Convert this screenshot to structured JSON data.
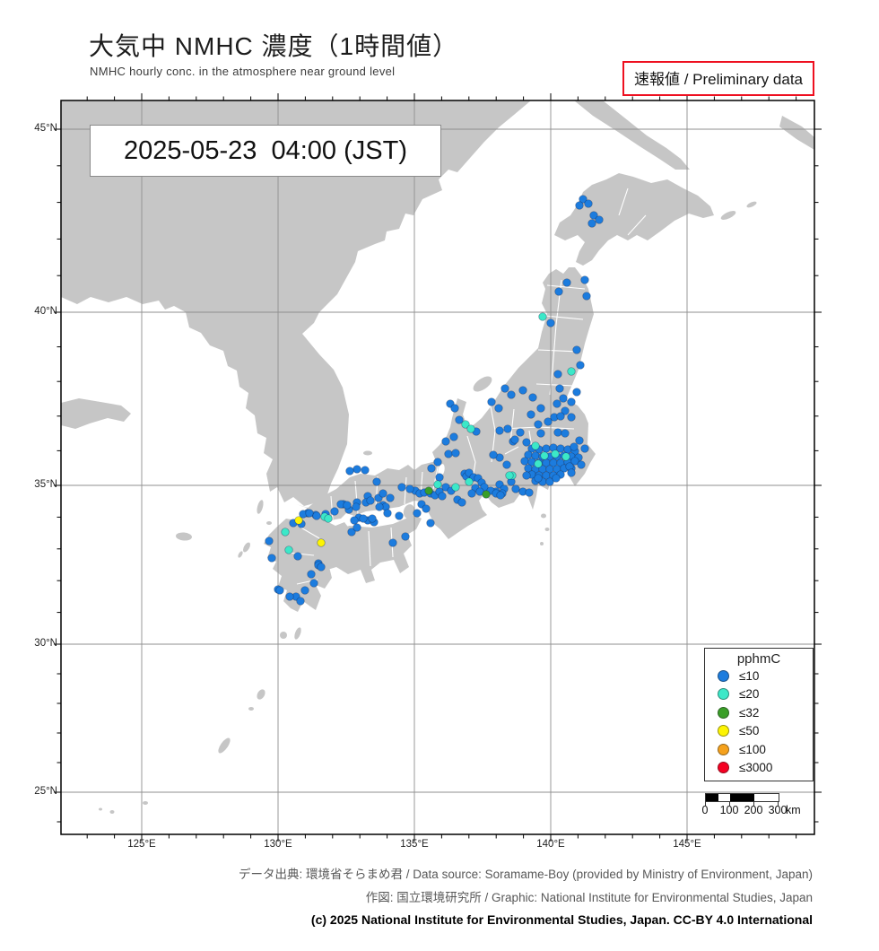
{
  "header": {
    "title": "大気中 NMHC 濃度（1時間値）",
    "subtitle": "NMHC hourly conc. in the atmosphere near ground level",
    "preliminary": "速報値 / Preliminary data"
  },
  "map": {
    "timestamp": "2025-05-23  04:00 (JST)",
    "lat_labels": [
      "45°N",
      "40°N",
      "35°N",
      "30°N",
      "25°N"
    ],
    "lon_labels": [
      "125°E",
      "130°E",
      "135°E",
      "140°E",
      "145°E"
    ]
  },
  "legend": {
    "title": "pphmC",
    "entries": [
      {
        "label": "≤10",
        "color": "#1c7cde",
        "level": "b"
      },
      {
        "label": "≤20",
        "color": "#3ce8c8",
        "level": "c"
      },
      {
        "label": "≤32",
        "color": "#3a9e28",
        "level": "g"
      },
      {
        "label": "≤50",
        "color": "#fdf403",
        "level": "y"
      },
      {
        "label": "≤100",
        "color": "#f5a11c",
        "level": "o"
      },
      {
        "label": "≤3000",
        "color": "#f50021",
        "level": "r"
      }
    ]
  },
  "scalebar": {
    "labels": [
      "0",
      "100",
      "200",
      "300"
    ],
    "unit": "km"
  },
  "footer": {
    "line1": "データ出典: 環境省そらまめ君 / Data source: Soramame-Boy (provided by Ministry of Environment, Japan)",
    "line2": "作図: 国立環境研究所 / Graphic: National Institute for Environmental Studies, Japan",
    "line3": "(c) 2025 National Institute for Environmental Studies, Japan. CC-BY 4.0 International"
  },
  "chart_data": {
    "type": "scatter",
    "title": "大気中 NMHC 濃度（1時間値）",
    "units": "pphmC",
    "lon_range": [
      122.1,
      149.7
    ],
    "lat_range": [
      23.6,
      45.8
    ],
    "legend_thresholds": [
      "≤10",
      "≤20",
      "≤32",
      "≤50",
      "≤100",
      "≤3000"
    ],
    "level_colors": {
      "b": "#1c7cde",
      "c": "#3ce8c8",
      "g": "#3a9e28",
      "y": "#fdf403",
      "o": "#f5a11c",
      "r": "#f50021"
    },
    "stations": {
      "b": [
        [
          650,
          222
        ],
        [
          656,
          227
        ],
        [
          646,
          229
        ],
        [
          662,
          240
        ],
        [
          668,
          245
        ],
        [
          660,
          249
        ],
        [
          632,
          315
        ],
        [
          652,
          312
        ],
        [
          623,
          325
        ],
        [
          654,
          330
        ],
        [
          614,
          360
        ],
        [
          643,
          390
        ],
        [
          647,
          407
        ],
        [
          622,
          417
        ],
        [
          583,
          435
        ],
        [
          643,
          437
        ],
        [
          624,
          433
        ],
        [
          628,
          444
        ],
        [
          637,
          448
        ],
        [
          621,
          450
        ],
        [
          603,
          455
        ],
        [
          630,
          458
        ],
        [
          618,
          465
        ],
        [
          637,
          465
        ],
        [
          600,
          473
        ],
        [
          611,
          470
        ],
        [
          625,
          464
        ],
        [
          594,
          443
        ],
        [
          548,
          448
        ],
        [
          556,
          455
        ],
        [
          563,
          433
        ],
        [
          570,
          440
        ],
        [
          531,
          481
        ],
        [
          506,
          487
        ],
        [
          497,
          492
        ],
        [
          502,
          450
        ],
        [
          507,
          455
        ],
        [
          512,
          468
        ],
        [
          557,
          480
        ],
        [
          580,
          482
        ],
        [
          572,
          492
        ],
        [
          587,
          493
        ],
        [
          603,
          483
        ],
        [
          622,
          482
        ],
        [
          630,
          483
        ],
        [
          592,
          462
        ],
        [
          566,
          478
        ],
        [
          574,
          490
        ],
        [
          593,
          500
        ],
        [
          601,
          501
        ],
        [
          609,
          500
        ],
        [
          617,
          499
        ],
        [
          625,
          500
        ],
        [
          633,
          501
        ],
        [
          641,
          503
        ],
        [
          589,
          507
        ],
        [
          597,
          508
        ],
        [
          605,
          509
        ],
        [
          613,
          509
        ],
        [
          621,
          509
        ],
        [
          629,
          508
        ],
        [
          637,
          509
        ],
        [
          645,
          510
        ],
        [
          585,
          514
        ],
        [
          593,
          515
        ],
        [
          601,
          516
        ],
        [
          609,
          516
        ],
        [
          617,
          516
        ],
        [
          625,
          516
        ],
        [
          633,
          515
        ],
        [
          641,
          514
        ],
        [
          648,
          518
        ],
        [
          589,
          522
        ],
        [
          597,
          523
        ],
        [
          605,
          523
        ],
        [
          613,
          523
        ],
        [
          621,
          523
        ],
        [
          629,
          522
        ],
        [
          637,
          522
        ],
        [
          593,
          529
        ],
        [
          601,
          530
        ],
        [
          609,
          530
        ],
        [
          617,
          530
        ],
        [
          625,
          529
        ],
        [
          635,
          520
        ],
        [
          597,
          536
        ],
        [
          605,
          537
        ],
        [
          613,
          537
        ],
        [
          600,
          533
        ],
        [
          620,
          533
        ],
        [
          587,
          530
        ],
        [
          557,
          540
        ],
        [
          562,
          545
        ],
        [
          565,
          518
        ],
        [
          557,
          510
        ],
        [
          550,
          507
        ],
        [
          570,
          537
        ],
        [
          637,
          527
        ],
        [
          652,
          500
        ],
        [
          640,
          498
        ],
        [
          646,
          491
        ],
        [
          575,
          545
        ],
        [
          583,
          548
        ],
        [
          590,
          549
        ],
        [
          560,
          550
        ],
        [
          553,
          548
        ],
        [
          518,
          528
        ],
        [
          520,
          531
        ],
        [
          523,
          527
        ],
        [
          528,
          532
        ],
        [
          533,
          533
        ],
        [
          537,
          538
        ],
        [
          540,
          543
        ],
        [
          547,
          547
        ],
        [
          553,
          550
        ],
        [
          558,
          552
        ],
        [
          530,
          544
        ],
        [
          535,
          548
        ],
        [
          526,
          550
        ],
        [
          481,
          522
        ],
        [
          488,
          515
        ],
        [
          500,
          506
        ],
        [
          508,
          505
        ],
        [
          490,
          532
        ],
        [
          497,
          543
        ],
        [
          503,
          547
        ],
        [
          463,
          547
        ],
        [
          468,
          550
        ],
        [
          473,
          549
        ],
        [
          480,
          550
        ],
        [
          485,
          552
        ],
        [
          490,
          548
        ],
        [
          457,
          545
        ],
        [
          448,
          543
        ],
        [
          470,
          562
        ],
        [
          475,
          567
        ],
        [
          465,
          572
        ],
        [
          480,
          583
        ],
        [
          510,
          557
        ],
        [
          515,
          560
        ],
        [
          493,
          553
        ],
        [
          398,
          523
        ],
        [
          407,
          524
        ],
        [
          420,
          537
        ],
        [
          410,
          553
        ],
        [
          422,
          555
        ],
        [
          427,
          563
        ],
        [
          430,
          565
        ],
        [
          400,
          577
        ],
        [
          410,
          580
        ],
        [
          417,
          582
        ],
        [
          343,
          572
        ],
        [
          352,
          574
        ],
        [
          373,
          570
        ],
        [
          383,
          562
        ],
        [
          427,
          550
        ],
        [
          435,
          555
        ],
        [
          390,
          525
        ],
        [
          389,
          568
        ],
        [
          398,
          560
        ],
        [
          408,
          560
        ],
        [
          413,
          558
        ],
        [
          423,
          565
        ],
        [
          445,
          575
        ],
        [
          405,
          578
        ],
        [
          415,
          578
        ],
        [
          355,
          628
        ],
        [
          438,
          605
        ],
        [
          452,
          598
        ],
        [
          432,
          572
        ],
        [
          327,
          583
        ],
        [
          338,
          573
        ],
        [
          345,
          572
        ],
        [
          353,
          575
        ],
        [
          363,
          573
        ],
        [
          380,
          562
        ],
        [
          387,
          563
        ],
        [
          397,
          565
        ],
        [
          392,
          593
        ],
        [
          398,
          588
        ],
        [
          395,
          580
        ],
        [
          300,
          603
        ],
        [
          303,
          622
        ],
        [
          332,
          620
        ],
        [
          355,
          630
        ],
        [
          358,
          632
        ],
        [
          350,
          650
        ],
        [
          340,
          658
        ],
        [
          330,
          665
        ],
        [
          335,
          670
        ],
        [
          310,
          657
        ],
        [
          312,
          658
        ],
        [
          323,
          665
        ],
        [
          347,
          640
        ],
        [
          336,
          584
        ]
      ],
      "c": [
        [
          605,
          353
        ],
        [
          637,
          414
        ],
        [
          519,
          473
        ],
        [
          525,
          478
        ],
        [
          597,
          497
        ],
        [
          607,
          508
        ],
        [
          619,
          506
        ],
        [
          631,
          509
        ],
        [
          600,
          517
        ],
        [
          571,
          530
        ],
        [
          568,
          530
        ],
        [
          523,
          537
        ],
        [
          508,
          543
        ],
        [
          488,
          540
        ],
        [
          362,
          576
        ],
        [
          366,
          578
        ],
        [
          318,
          593
        ],
        [
          322,
          613
        ]
      ],
      "g": [
        [
          478,
          547
        ],
        [
          542,
          551
        ]
      ],
      "y": [
        [
          333,
          580
        ],
        [
          358,
          605
        ]
      ],
      "o": [],
      "r": []
    }
  }
}
